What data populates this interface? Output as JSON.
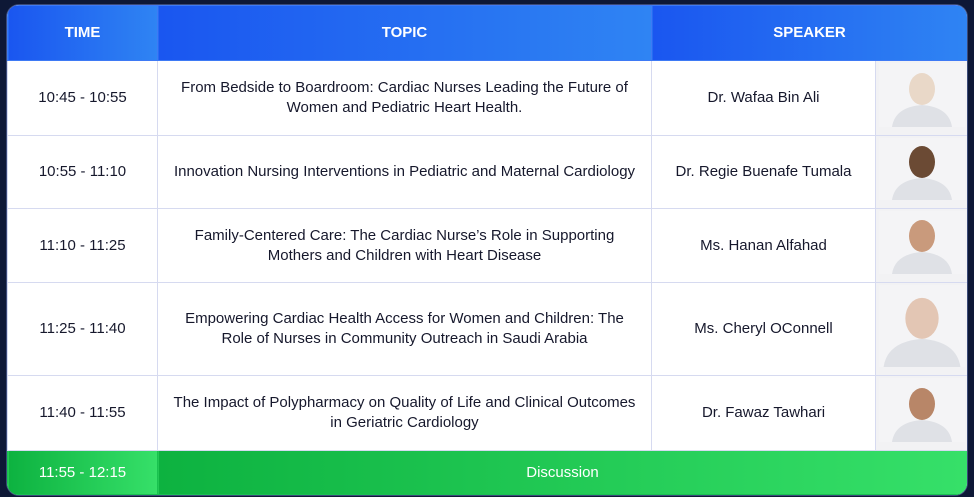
{
  "header": {
    "time": "TIME",
    "topic": "TOPIC",
    "speaker": "SPEAKER"
  },
  "rows": [
    {
      "time": "10:45 - 10:55",
      "topic": "From Bedside to Boardroom: Cardiac Nurses Leading the Future of Women and Pediatric Heart Health.",
      "speaker": "Dr. Wafaa Bin Ali"
    },
    {
      "time": "10:55 - 11:10",
      "topic": "Innovation Nursing Interventions in Pediatric and Maternal Cardiology",
      "speaker": "Dr. Regie Buenafe Tumala"
    },
    {
      "time": "11:10 - 11:25",
      "topic": "Family-Centered Care: The Cardiac Nurse’s Role in Supporting Mothers and Children with Heart Disease",
      "speaker": "Ms. Hanan Alfahad"
    },
    {
      "time": "11:25 - 11:40",
      "topic": "Empowering Cardiac Health Access for Women and Children: The Role of Nurses in Community Outreach in Saudi Arabia",
      "speaker": "Ms. Cheryl OConnell"
    },
    {
      "time": "11:40 - 11:55",
      "topic": "The Impact of Polypharmacy on Quality of Life and Clinical Outcomes in Geriatric Cardiology",
      "speaker": "Dr. Fawaz Tawhari"
    }
  ],
  "discussion": {
    "time": "11:55 - 12:15",
    "label": "Discussion"
  }
}
